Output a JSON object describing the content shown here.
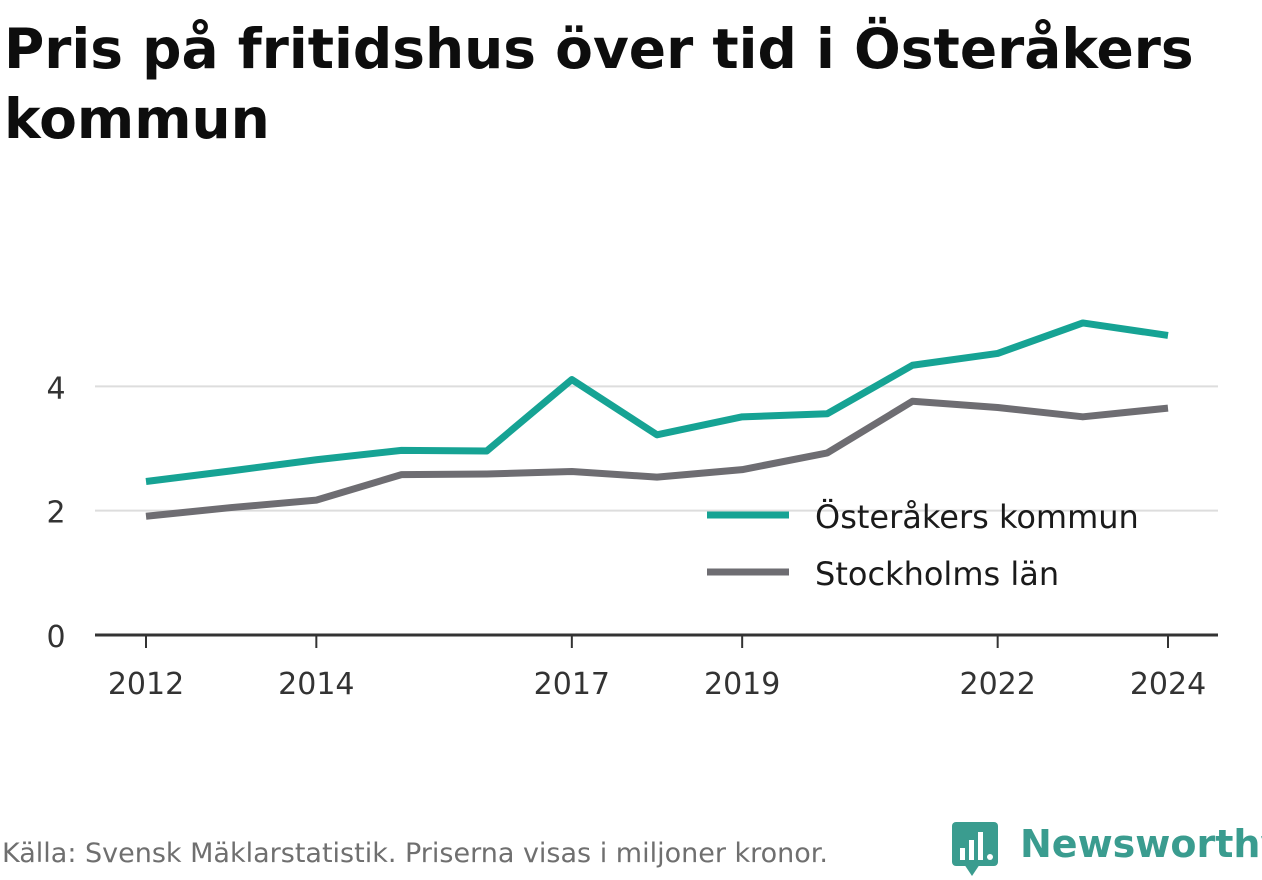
{
  "title": "Pris på fritidshus över tid i Österåkers kommun",
  "footer": {
    "source": "Källa: Svensk Mäklarstatistik. Priserna visas i miljoner kronor.",
    "brand": "Newsworthy"
  },
  "chart_data": {
    "type": "line",
    "x": [
      2012,
      2013,
      2014,
      2015,
      2016,
      2017,
      2018,
      2019,
      2020,
      2021,
      2022,
      2023,
      2024
    ],
    "x_ticks": [
      2012,
      2014,
      2017,
      2019,
      2022,
      2024
    ],
    "x_tick_labels": [
      "2012",
      "2014",
      "2017",
      "2019",
      "2022",
      "2024"
    ],
    "y_ticks": [
      0,
      2,
      4
    ],
    "y_tick_labels": [
      "0",
      "2",
      "4"
    ],
    "ylim": [
      0,
      5.1
    ],
    "grid": "horizontal",
    "legend_position": "inside-bottom-right",
    "series": [
      {
        "name": "Österåkers kommun",
        "color": "#16a394",
        "values": [
          2.47,
          2.64,
          2.82,
          2.97,
          2.96,
          4.11,
          3.22,
          3.51,
          3.56,
          4.34,
          4.53,
          5.02,
          4.82
        ]
      },
      {
        "name": "Stockholms län",
        "color": "#6e6d72",
        "values": [
          1.91,
          2.05,
          2.17,
          2.58,
          2.59,
          2.63,
          2.54,
          2.66,
          2.93,
          3.76,
          3.66,
          3.51,
          3.65
        ]
      }
    ]
  }
}
